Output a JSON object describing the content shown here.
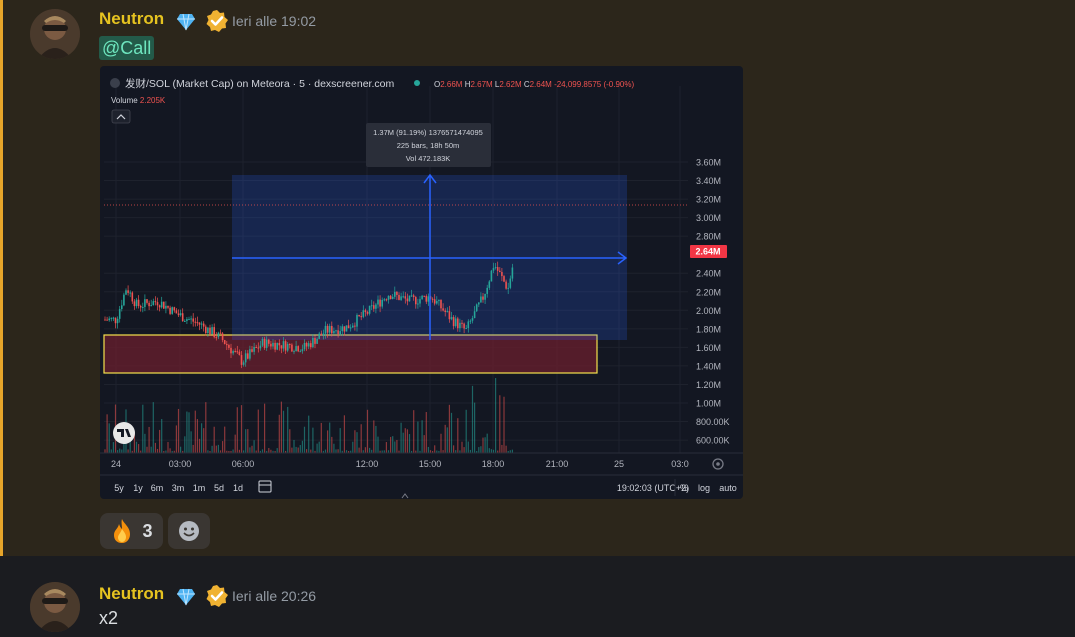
{
  "messages": [
    {
      "author": "Neutron",
      "timestamp": "Ieri alle 19:02",
      "mention": "@Call",
      "reactions": [
        {
          "emoji": "fire-emoji",
          "count": "3"
        },
        {
          "emoji": "add-reaction-icon"
        }
      ]
    },
    {
      "author": "Neutron",
      "timestamp": "Ieri alle 20:26",
      "text": "x2"
    }
  ],
  "chart": {
    "symbol": "发财/SOL (Market Cap) on Meteora · 5 · dexscreener.com",
    "ohlc": {
      "o_label": "O",
      "o": "2.66M",
      "h_label": "H",
      "h": "2.67M",
      "l_label": "L",
      "l": "2.62M",
      "c_label": "C",
      "c": "2.64M",
      "change": "-24,099.8575 (-0.90%)"
    },
    "volume_label": "Volume",
    "volume_value": "2.205K",
    "price_ticks": [
      "3.60M",
      "3.40M",
      "3.20M",
      "3.00M",
      "2.80M",
      "2.64M",
      "2.40M",
      "2.20M",
      "2.00M",
      "1.80M",
      "1.60M",
      "1.40M",
      "1.20M",
      "1.00M",
      "800.00K",
      "600.00K"
    ],
    "current_price": "2.64M",
    "time_ticks": [
      "24",
      "03:00",
      "06:00",
      "12:00",
      "15:00",
      "18:00",
      "21:00",
      "25",
      "03:0"
    ],
    "tooltip": [
      "1.37M (91.19%) 1376571474095",
      "225 bars, 18h 50m",
      "Vol 472.183K"
    ],
    "ranges": [
      "5y",
      "1y",
      "6m",
      "3m",
      "1m",
      "5d",
      "1d"
    ],
    "clock": "19:02:03 (UTC+2)",
    "scale_buttons": [
      "%",
      "log",
      "auto"
    ],
    "colors": {
      "up": "#26a69a",
      "down": "#ef5350",
      "measure": "#2962ff",
      "zone_border": "#f5e14d",
      "zone_fill": "#6b1f2e"
    }
  },
  "chart_data": {
    "type": "candlestick",
    "title": "发财/SOL (Market Cap) on Meteora · 5 · dexscreener.com",
    "ylim": [
      600000,
      3600000
    ],
    "close_path": [
      {
        "t": "24",
        "v": 1900000
      },
      {
        "t": "00:30",
        "v": 2250000
      },
      {
        "t": "01:00",
        "v": 2050000
      },
      {
        "t": "02:00",
        "v": 2100000
      },
      {
        "t": "03:00",
        "v": 1950000
      },
      {
        "t": "04:00",
        "v": 1850000
      },
      {
        "t": "05:00",
        "v": 1700000
      },
      {
        "t": "06:00",
        "v": 1450000
      },
      {
        "t": "07:00",
        "v": 1650000
      },
      {
        "t": "09:00",
        "v": 1600000
      },
      {
        "t": "10:00",
        "v": 1780000
      },
      {
        "t": "11:00",
        "v": 1820000
      },
      {
        "t": "12:00",
        "v": 1980000
      },
      {
        "t": "13:00",
        "v": 2180000
      },
      {
        "t": "14:00",
        "v": 2100000
      },
      {
        "t": "15:00",
        "v": 2150000
      },
      {
        "t": "16:00",
        "v": 1900000
      },
      {
        "t": "16:40",
        "v": 1780000
      },
      {
        "t": "17:30",
        "v": 2150000
      },
      {
        "t": "18:00",
        "v": 2500000
      },
      {
        "t": "18:40",
        "v": 2230000
      },
      {
        "t": "19:02",
        "v": 2640000
      }
    ],
    "last": {
      "open": 2660000,
      "high": 2670000,
      "low": 2620000,
      "close": 2640000
    }
  }
}
